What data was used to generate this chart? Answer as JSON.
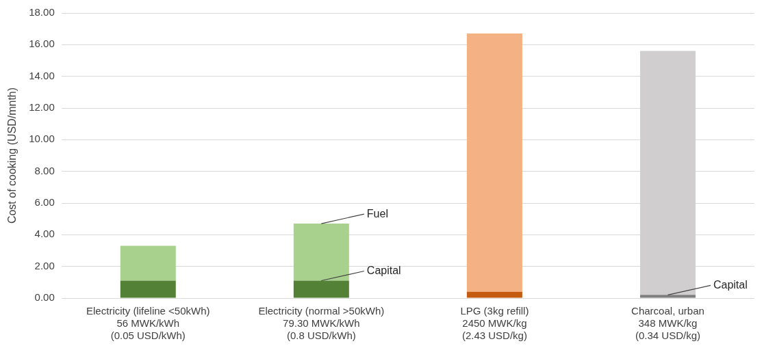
{
  "chart_data": {
    "type": "bar",
    "ylabel": "Cost of cooking (USD/mnth)",
    "categories": [
      "Electricity (lifeline <50kWh)\n56 MWK/kWh\n(0.05 USD/kWh)",
      "Electricity (normal >50kWh)\n79.30 MWK/kWh\n(0.8 USD/kWh)",
      "LPG (3kg refill)\n2450 MWK/kg\n(2.43 USD/kg)",
      "Charcoal, urban\n348 MWK/kg\n(0.34 USD/kg)"
    ],
    "stacked": true,
    "series": [
      {
        "colors": [
          "#538135",
          "#538135",
          "#c55a11",
          "#7f7f7f"
        ],
        "values": [
          1.1,
          1.1,
          0.4,
          0.2
        ]
      },
      {
        "colors": [
          "#a9d18e",
          "#a9d18e",
          "#f4b183",
          "#d0cece"
        ],
        "values": [
          2.2,
          3.6,
          16.3,
          15.4
        ]
      }
    ],
    "ylim": [
      0,
      18
    ],
    "yticks": [
      {
        "value": 0,
        "label": "0.00"
      },
      {
        "value": 2,
        "label": "2.00"
      },
      {
        "value": 4,
        "label": "4.00"
      },
      {
        "value": 6,
        "label": "6.00"
      },
      {
        "value": 8,
        "label": "8.00"
      },
      {
        "value": 10,
        "label": "10.00"
      },
      {
        "value": 12,
        "label": "12.00"
      },
      {
        "value": 14,
        "label": "14.00"
      },
      {
        "value": 16,
        "label": "16.00"
      },
      {
        "value": 18,
        "label": "18.00"
      }
    ],
    "grid": "y",
    "legend": false,
    "annotations": [
      {
        "text": "Fuel",
        "x": "Electricity (normal >50kWh)\n79.30 MWK/kWh\n(0.8 USD/kWh)",
        "y": 4.7
      },
      {
        "text": "Capital",
        "x": "Electricity (normal >50kWh)\n79.30 MWK/kWh\n(0.8 USD/kWh)",
        "y": 1.1
      },
      {
        "text": "Capital",
        "x": "Charcoal, urban\n348 MWK/kg\n(0.34 USD/kg)",
        "y": 0.2
      }
    ]
  }
}
